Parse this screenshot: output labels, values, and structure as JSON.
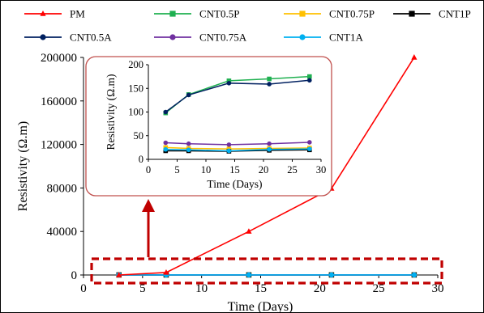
{
  "chart_data": [
    {
      "type": "line",
      "xlabel": "Time (Days)",
      "ylabel": "Resistivity (Ω.m)",
      "xlim": [
        0,
        30
      ],
      "ylim": [
        0,
        200000
      ],
      "x_ticks": [
        0,
        5,
        10,
        15,
        20,
        25,
        30
      ],
      "y_ticks": [
        0,
        40000,
        80000,
        120000,
        160000,
        200000
      ],
      "grid": false,
      "legend_position": "top",
      "x": [
        3,
        7,
        14,
        21,
        28
      ],
      "series": [
        {
          "name": "PM",
          "color": "#ff0000",
          "marker": "triangle",
          "values": [
            0,
            2300,
            40000,
            79500,
            200000
          ]
        },
        {
          "name": "CNT0.5P",
          "color": "#1fb050",
          "marker": "square",
          "values": [
            98,
            137,
            166,
            170,
            175
          ]
        },
        {
          "name": "CNT0.75P",
          "color": "#ffc000",
          "marker": "square",
          "values": [
            25,
            23,
            22,
            23,
            24
          ]
        },
        {
          "name": "CNT1P",
          "color": "#000000",
          "marker": "square",
          "values": [
            18,
            18,
            17,
            19,
            20
          ]
        },
        {
          "name": "CNT0.5A",
          "color": "#002060",
          "marker": "circle",
          "values": [
            100,
            136,
            161,
            159,
            167
          ]
        },
        {
          "name": "CNT0.75A",
          "color": "#7030a0",
          "marker": "circle",
          "values": [
            35,
            33,
            31,
            33,
            36
          ]
        },
        {
          "name": "CNT1A",
          "color": "#00b0f0",
          "marker": "circle",
          "values": [
            21,
            20,
            18,
            21,
            22
          ]
        }
      ],
      "annotations": [
        "dashed red box highlighting low-resistivity series near zero",
        "red arrow pointing to inset"
      ]
    },
    {
      "type": "line",
      "role": "inset",
      "xlabel": "Time (Days)",
      "ylabel": "Resistivity (Ω.m)",
      "xlim": [
        0,
        30
      ],
      "ylim": [
        0,
        200
      ],
      "x_ticks": [
        0,
        5,
        10,
        15,
        20,
        25,
        30
      ],
      "y_ticks": [
        0,
        50,
        100,
        150,
        200
      ],
      "grid": false,
      "x": [
        3,
        7,
        14,
        21,
        28
      ],
      "series_ref": [
        "CNT0.5P",
        "CNT0.75P",
        "CNT1P",
        "CNT0.5A",
        "CNT0.75A",
        "CNT1A"
      ]
    }
  ]
}
